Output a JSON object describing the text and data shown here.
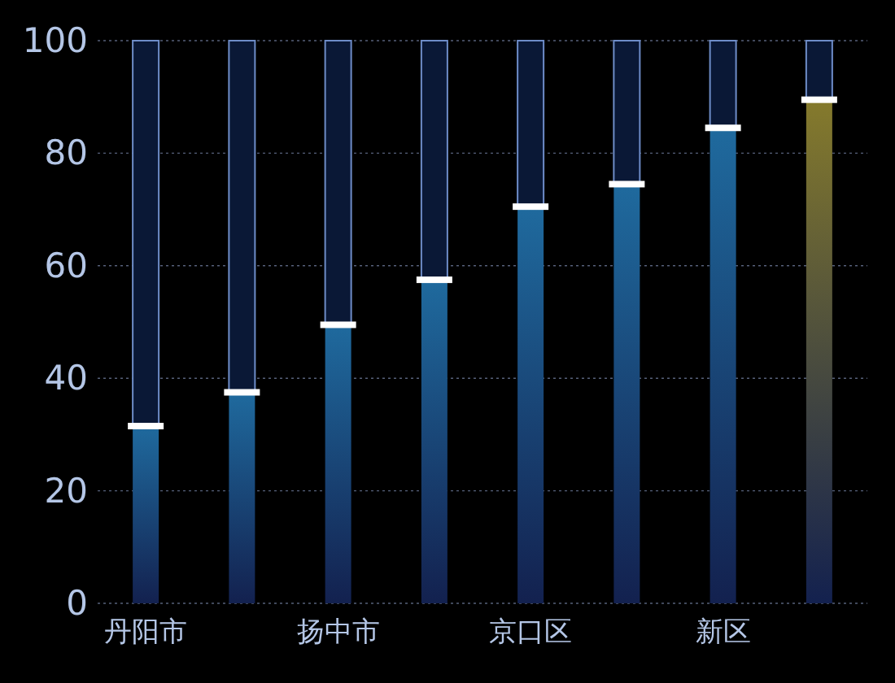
{
  "chart_data": {
    "type": "bar",
    "stacked": true,
    "categories": [
      "丹阳市",
      null,
      "扬中市",
      null,
      "京口区",
      null,
      "新区",
      null
    ],
    "series": [
      {
        "colors": [
          "#1f6a9e",
          "#1f6a9e",
          "#1f6a9e",
          "#1f6a9e",
          "#1f6a9e",
          "#1f6a9e",
          "#1f6a9e",
          "#857a2c"
        ],
        "values": [
          31.5,
          37.5,
          49.5,
          57.5,
          70.5,
          74.5,
          84.5,
          89.5
        ]
      },
      {
        "color": "#0a1836",
        "values": [
          68.5,
          62.5,
          50.5,
          42.5,
          29.5,
          25.5,
          15.5,
          10.5
        ]
      }
    ],
    "ylim": [
      0,
      100
    ],
    "yticks": [
      0,
      20,
      40,
      60,
      80,
      100
    ],
    "grid": "y"
  }
}
